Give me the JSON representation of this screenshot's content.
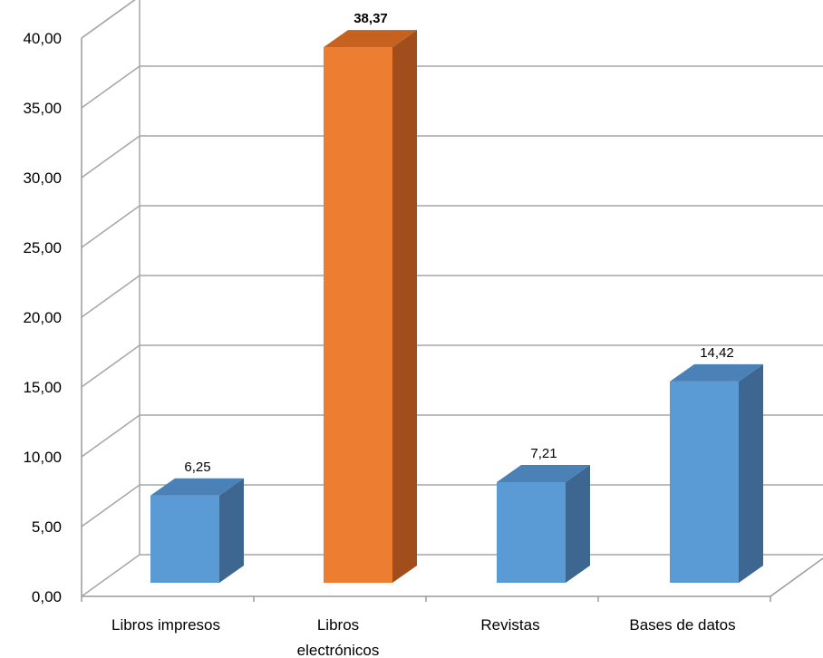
{
  "chart_data": {
    "type": "bar",
    "style": "3d-column",
    "categories": [
      "Libros impresos",
      "Libros electrónicos",
      "Revistas",
      "Bases de datos"
    ],
    "category_lines": [
      [
        "Libros impresos"
      ],
      [
        "Libros",
        "electrónicos"
      ],
      [
        "Revistas"
      ],
      [
        "Bases de datos"
      ]
    ],
    "values": [
      6.25,
      38.37,
      7.21,
      14.42
    ],
    "data_labels": [
      "6,25",
      "38,37",
      "7,21",
      "14,42"
    ],
    "highlight_index": 1,
    "title": "",
    "xlabel": "",
    "ylabel": "",
    "ylim": [
      0,
      40
    ],
    "y_ticks": [
      0,
      5,
      10,
      15,
      20,
      25,
      30,
      35,
      40
    ],
    "y_tick_labels": [
      "0,00",
      "5,00",
      "10,00",
      "15,00",
      "20,00",
      "25,00",
      "30,00",
      "35,00",
      "40,00"
    ],
    "grid": true,
    "legend": "none",
    "colors": {
      "bar_front": "#5b9bd5",
      "bar_side": "#3d6690",
      "bar_top": "#4a81b6",
      "highlight_front": "#ed7d31",
      "highlight_side": "#a24e1c",
      "highlight_top": "#c6611f",
      "grid": "#a6a6a6"
    }
  }
}
